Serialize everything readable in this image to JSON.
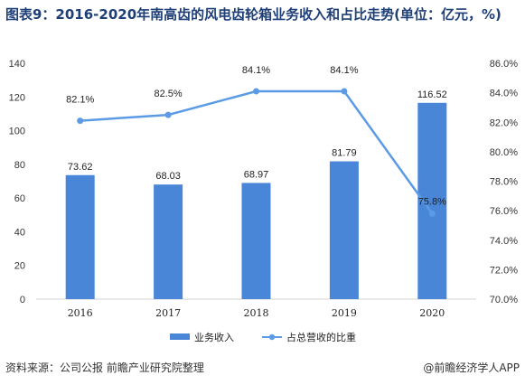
{
  "title": "图表9：2016-2020年南高齿的风电齿轮箱业务收入和占比走势(单位：亿元，%)",
  "source": "资料来源：公司公报 前瞻产业研究院整理",
  "brand": "@前瞻经济学人APP",
  "chart_data": {
    "type": "bar",
    "categories": [
      "2016",
      "2017",
      "2018",
      "2019",
      "2020"
    ],
    "series": [
      {
        "name": "业务收入",
        "type": "bar",
        "axis": "left",
        "values": [
          73.62,
          68.03,
          68.97,
          81.79,
          116.52
        ],
        "labels": [
          "73.62",
          "68.03",
          "68.97",
          "81.79",
          "116.52"
        ],
        "color": "#4a86d8"
      },
      {
        "name": "占总营收的比重",
        "type": "line",
        "axis": "right",
        "values": [
          82.1,
          82.5,
          84.1,
          84.1,
          75.8
        ],
        "labels": [
          "82.1%",
          "82.5%",
          "84.1%",
          "84.1%",
          "75.8%"
        ],
        "color": "#5b9be6"
      }
    ],
    "yleft": {
      "min": 0,
      "max": 140,
      "ticks": [
        "0",
        "20",
        "40",
        "60",
        "80",
        "100",
        "120",
        "140"
      ]
    },
    "yright": {
      "min": 70,
      "max": 86,
      "ticks": [
        "70.0%",
        "72.0%",
        "74.0%",
        "76.0%",
        "78.0%",
        "80.0%",
        "82.0%",
        "84.0%",
        "86.0%"
      ]
    },
    "grid": false,
    "legend": "bottom"
  }
}
